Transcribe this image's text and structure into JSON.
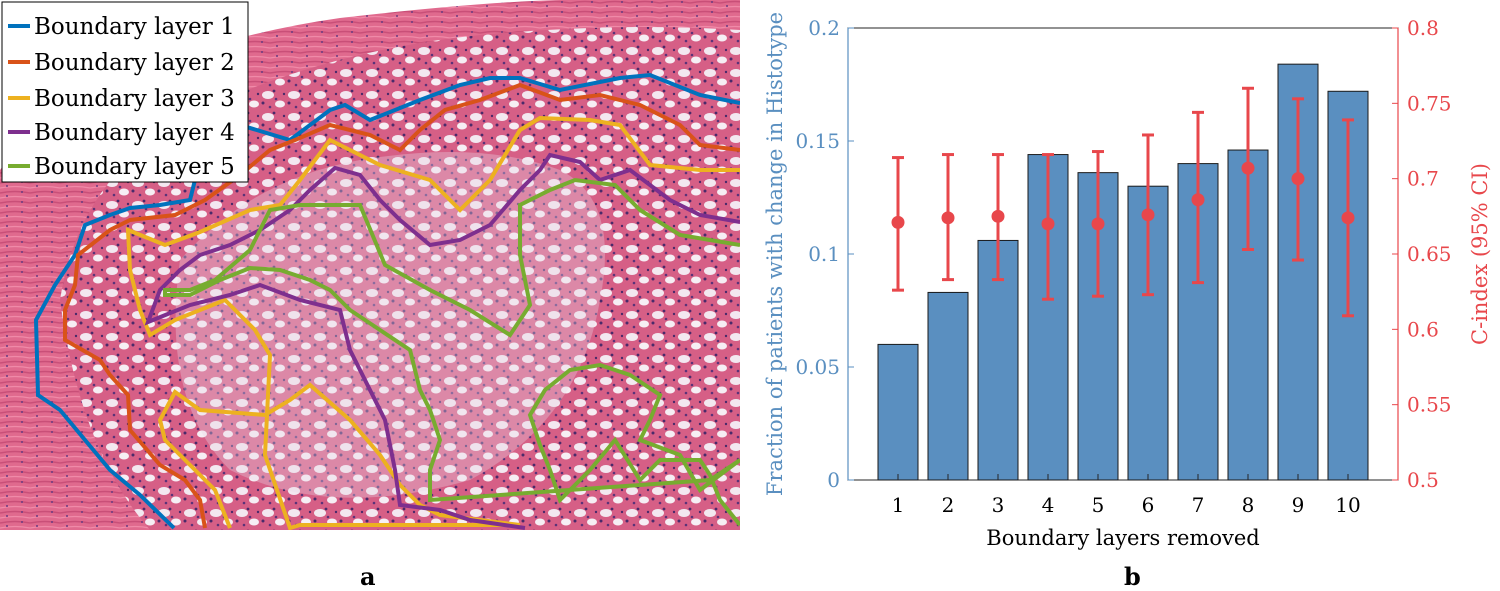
{
  "panel_a": {
    "letter": "a",
    "legend": [
      {
        "label": "Boundary layer 1",
        "color": "#0072BD"
      },
      {
        "label": "Boundary layer 2",
        "color": "#D95319"
      },
      {
        "label": "Boundary layer 3",
        "color": "#EDB120"
      },
      {
        "label": "Boundary layer 4",
        "color": "#7E2F8E"
      },
      {
        "label": "Boundary layer 5",
        "color": "#77AC30"
      }
    ]
  },
  "panel_b": {
    "letter": "b"
  },
  "chart_data": {
    "type": "bar",
    "categories": [
      "1",
      "2",
      "3",
      "4",
      "5",
      "6",
      "7",
      "8",
      "9",
      "10"
    ],
    "xlabel": "Boundary layers removed",
    "ylabel": "Fraction of patients with change in Histotype",
    "ylabel_right": "C-index (95% CI)",
    "ylim": [
      0,
      0.2
    ],
    "ylim_right": [
      0.5,
      0.8
    ],
    "yticks": [
      "0",
      "0.05",
      "0.1",
      "0.15",
      "0.2"
    ],
    "yticks_right": [
      "0.5",
      "0.55",
      "0.6",
      "0.65",
      "0.7",
      "0.75",
      "0.8"
    ],
    "bar_color": "#5A8FC0",
    "errorbar_color": "#E8474B",
    "series": [
      {
        "values": [
          0.06,
          0.083,
          0.106,
          0.144,
          0.136,
          0.13,
          0.14,
          0.146,
          0.184,
          0.172
        ]
      },
      {
        "axis": "right",
        "values": [
          0.671,
          0.674,
          0.675,
          0.67,
          0.67,
          0.676,
          0.686,
          0.707,
          0.7,
          0.674
        ],
        "lower": [
          0.626,
          0.633,
          0.633,
          0.62,
          0.622,
          0.623,
          0.631,
          0.653,
          0.646,
          0.609
        ],
        "upper": [
          0.714,
          0.716,
          0.716,
          0.716,
          0.718,
          0.729,
          0.744,
          0.76,
          0.753,
          0.739
        ]
      }
    ],
    "grid": false,
    "legend": "none"
  }
}
